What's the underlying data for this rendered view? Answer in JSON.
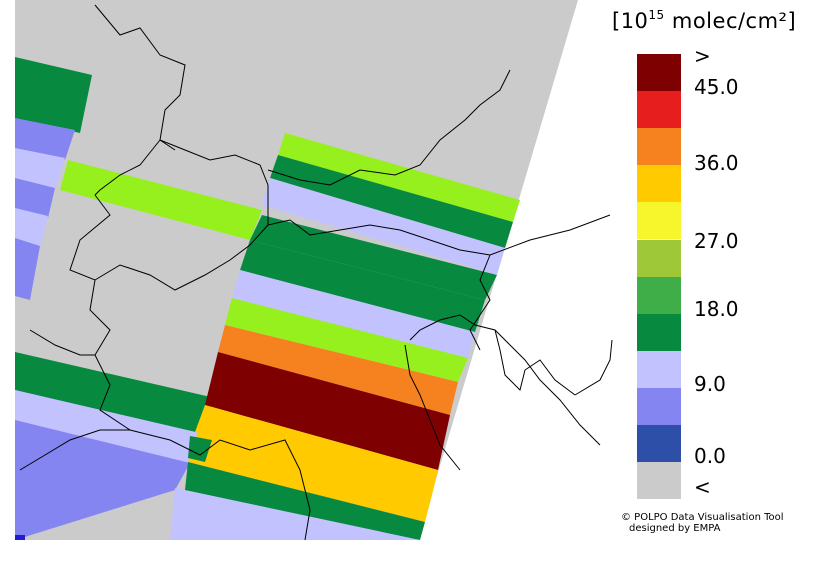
{
  "legend": {
    "unit_prefix": "[10",
    "unit_exp": "15",
    "unit_suffix": " molec/cm²]",
    "labels": [
      ">",
      "45.0",
      "36.0",
      "27.0",
      "18.0",
      "9.0",
      "0.0",
      "<"
    ],
    "colors": [
      "#7e0000",
      "#e61e1e",
      "#f5821e",
      "#ffca00",
      "#f7f52b",
      "#9fc839",
      "#3fae49",
      "#07893f",
      "#c2c2ff",
      "#8585f2",
      "#2e4fa7",
      "#cbcbcb"
    ]
  },
  "credit": {
    "line1": "© POLPO Data Visualisation Tool",
    "line2": "designed by EMPA"
  },
  "map_colors": {
    "no_data": "#cbcbcb",
    "dark_green": "#07893f",
    "lime": "#96f01e",
    "lavender": "#c2c2ff",
    "mid_blue": "#8585f2",
    "dark_blue": "#1e1ed2",
    "orange": "#f5821e",
    "yellow": "#ffca00",
    "dark_red": "#7e0000"
  }
}
